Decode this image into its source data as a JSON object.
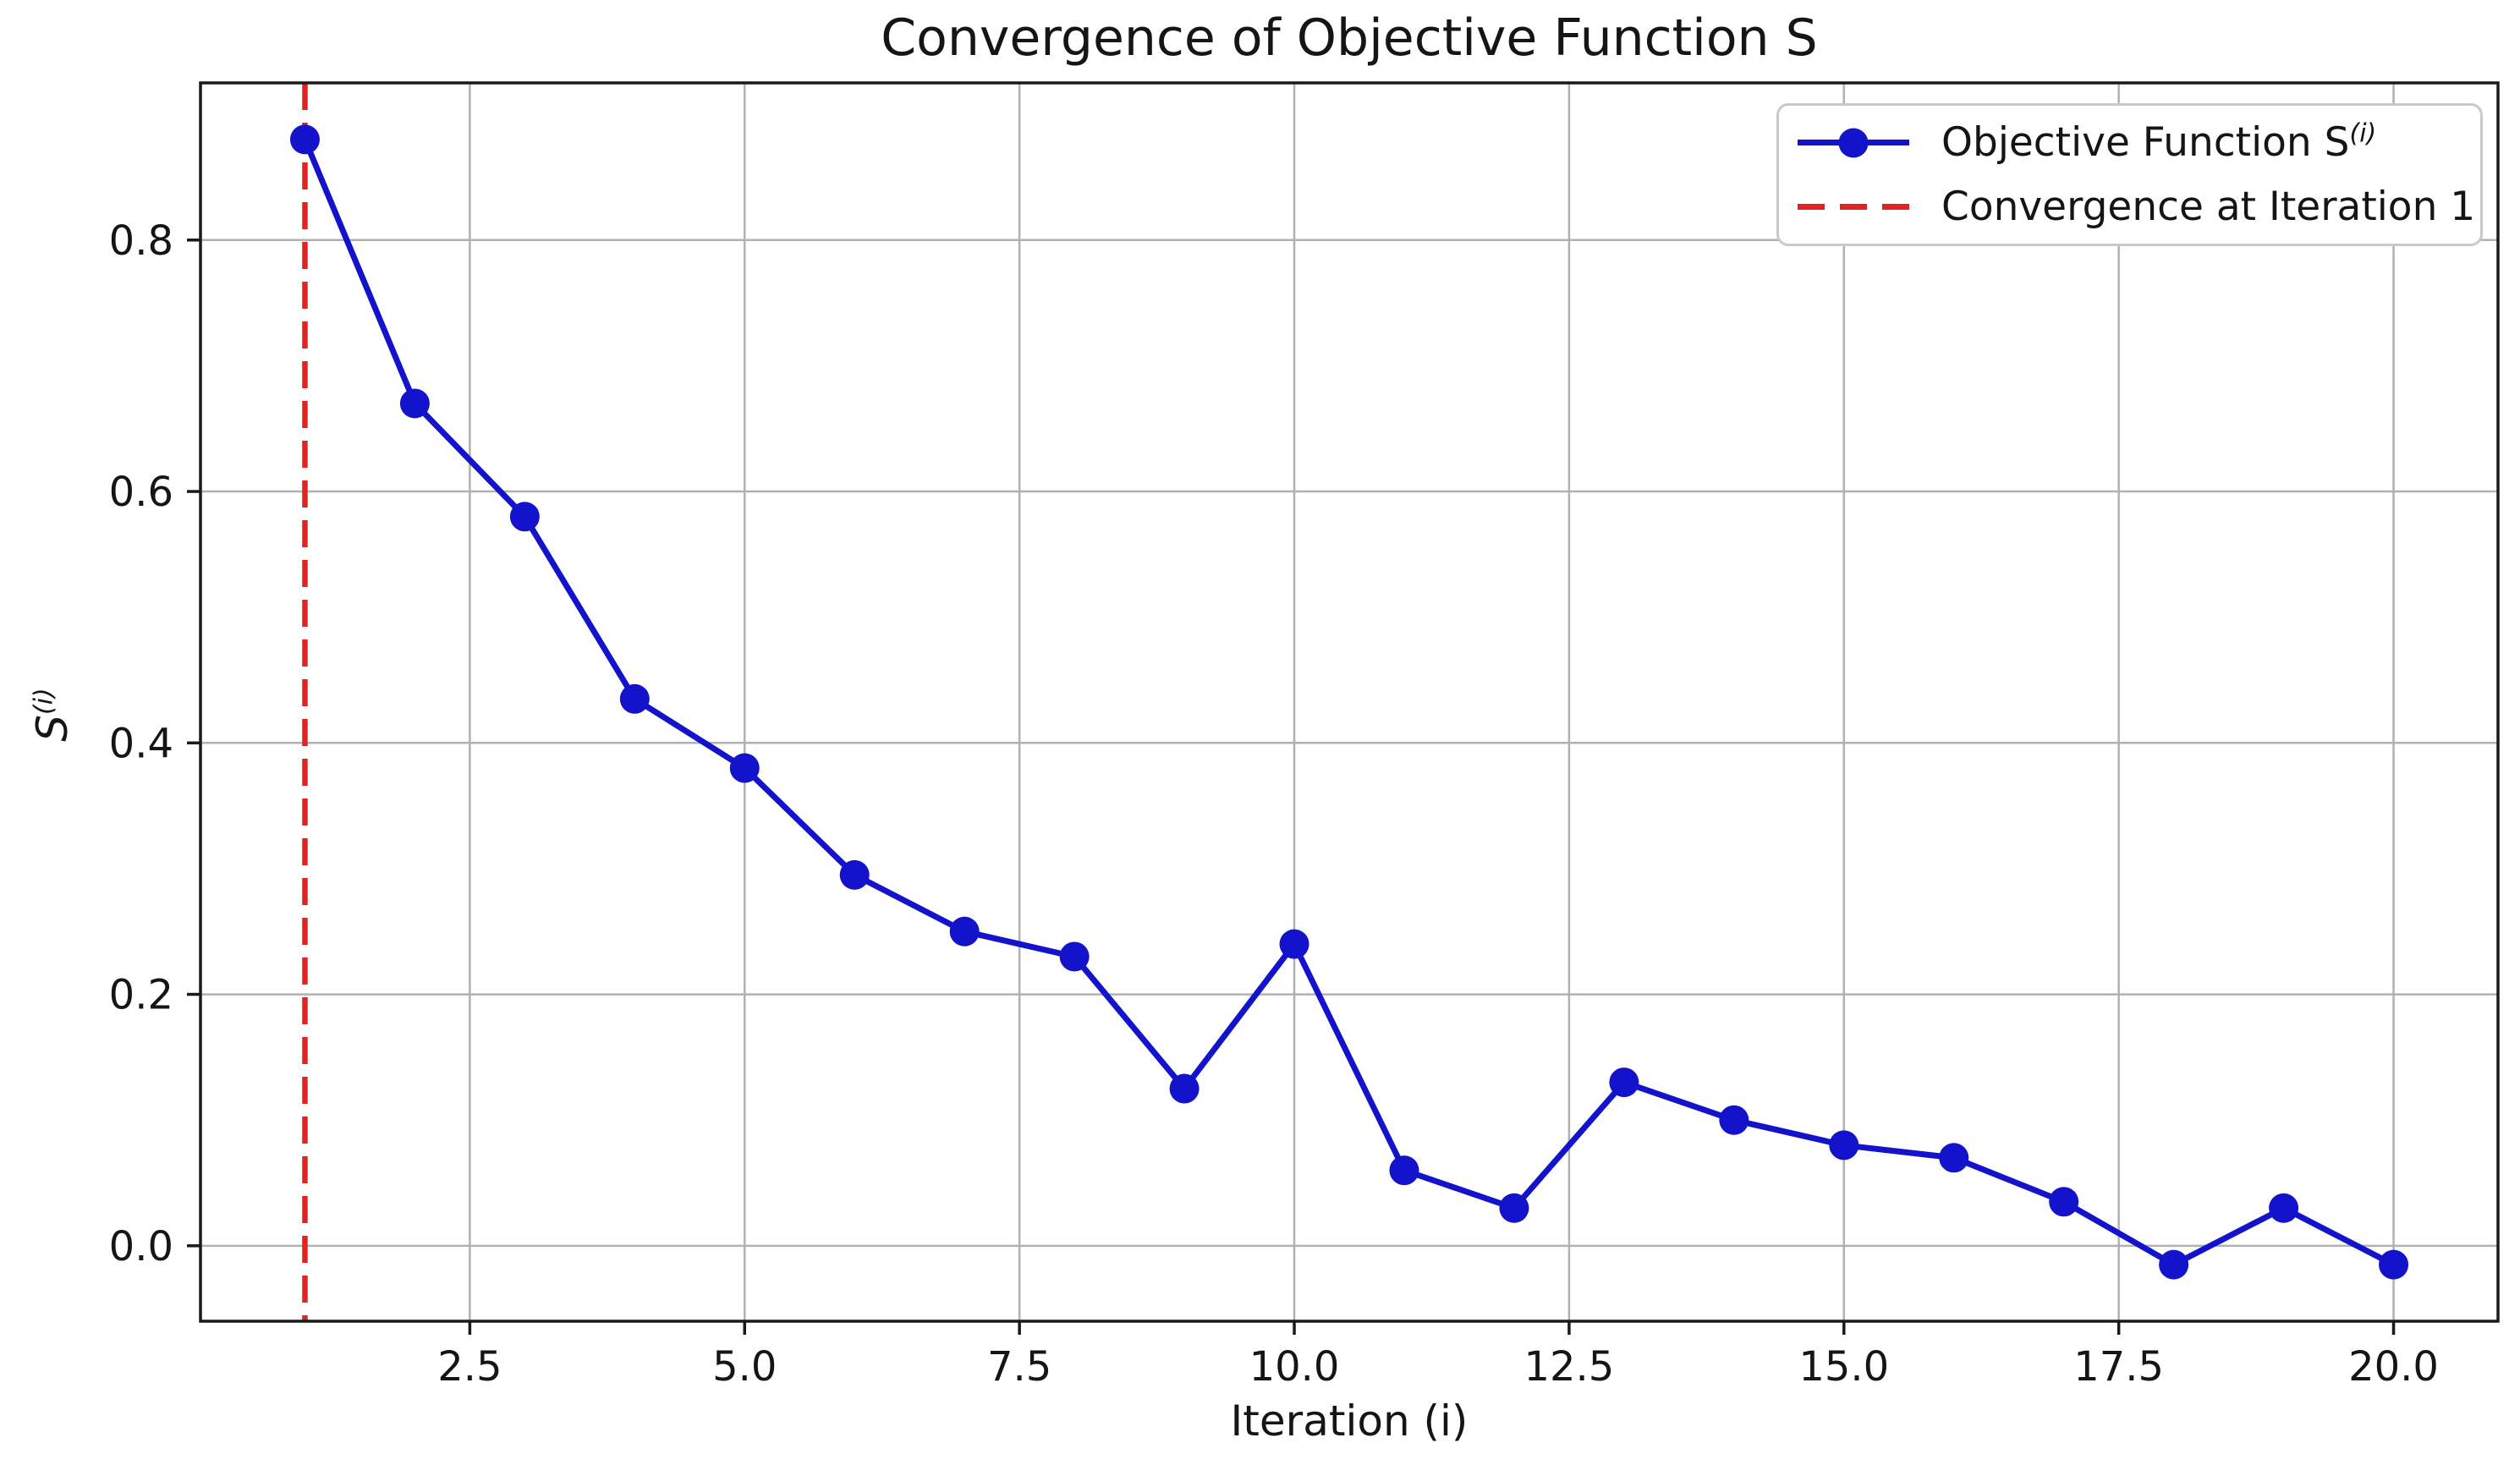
{
  "chart_data": {
    "type": "line",
    "title": "Convergence of Objective Function S",
    "xlabel": "Iteration (i)",
    "ylabel_base": "S",
    "ylabel_sup": "(i)",
    "x": [
      1,
      2,
      3,
      4,
      5,
      6,
      7,
      8,
      9,
      10,
      11,
      12,
      13,
      14,
      15,
      16,
      17,
      18,
      19,
      20
    ],
    "y": [
      0.88,
      0.67,
      0.58,
      0.435,
      0.38,
      0.295,
      0.25,
      0.23,
      0.125,
      0.24,
      0.06,
      0.03,
      0.13,
      0.1,
      0.08,
      0.07,
      0.035,
      -0.015,
      0.03,
      -0.015
    ],
    "vline": {
      "x": 1
    },
    "xlim": [
      0.05,
      20.95
    ],
    "ylim": [
      -0.06,
      0.925
    ],
    "xticks": [
      2.5,
      5.0,
      7.5,
      10.0,
      12.5,
      15.0,
      17.5,
      20.0
    ],
    "xtick_labels": [
      "2.5",
      "5.0",
      "7.5",
      "10.0",
      "12.5",
      "15.0",
      "17.5",
      "20.0"
    ],
    "yticks": [
      0.0,
      0.2,
      0.4,
      0.6,
      0.8
    ],
    "ytick_labels": [
      "0.0",
      "0.2",
      "0.4",
      "0.6",
      "0.8"
    ],
    "grid": true,
    "legend_position": "upper right",
    "legend": {
      "items": [
        {
          "label_base": "Objective Function S",
          "label_sup": "(i)",
          "style": "solid-marker"
        },
        {
          "label_base": "Convergence at Iteration 1",
          "label_sup": "",
          "style": "dashed"
        }
      ]
    },
    "colors": {
      "series": "#1313cc",
      "vline": "#e32222",
      "grid": "#b1b1b1",
      "spine": "#1a1a1a",
      "text": "#151515",
      "legend_border": "#c9c9c9",
      "background": "#ffffff"
    }
  }
}
